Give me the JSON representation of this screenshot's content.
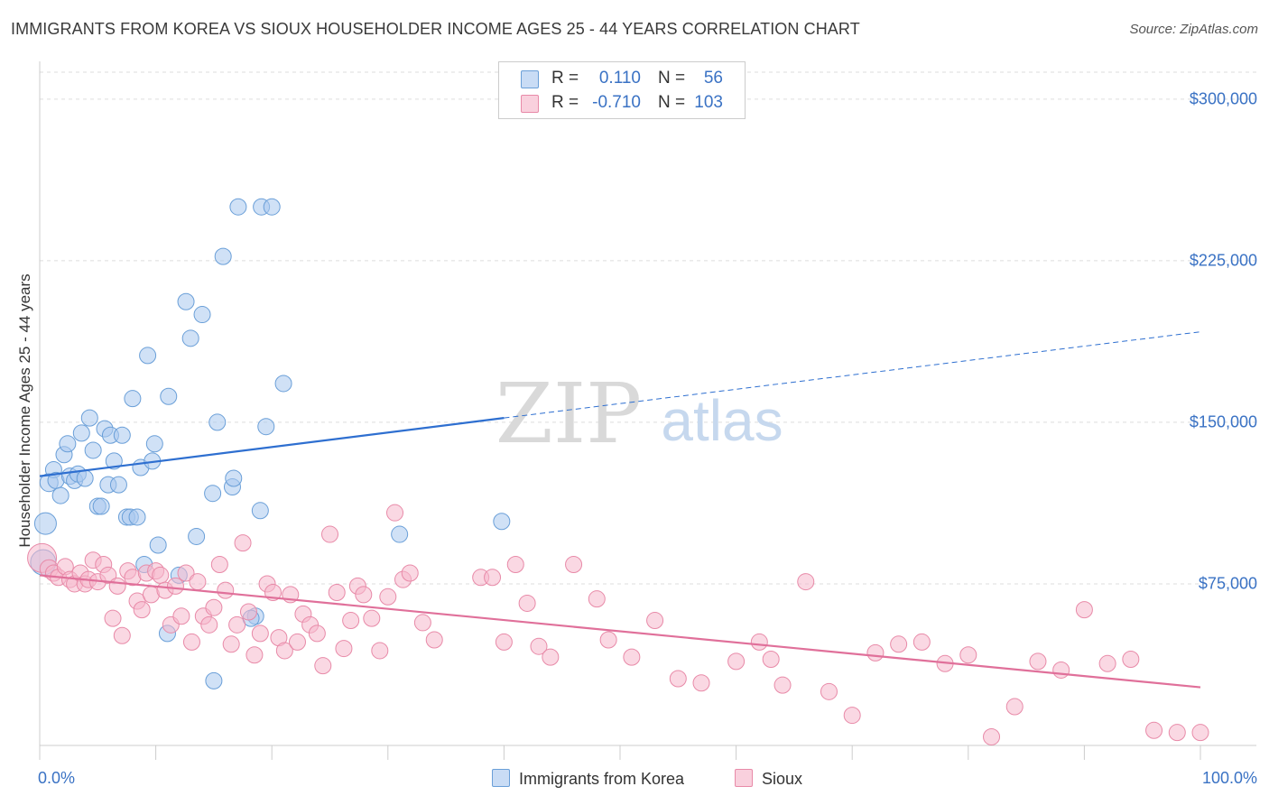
{
  "header": {
    "title": "IMMIGRANTS FROM KOREA VS SIOUX HOUSEHOLDER INCOME AGES 25 - 44 YEARS CORRELATION CHART",
    "source": "Source: ZipAtlas.com"
  },
  "watermark": {
    "zip": "ZIP",
    "atlas": "atlas"
  },
  "legend_top": {
    "rows": [
      {
        "r_label": "R =",
        "r_value": "0.110",
        "n_label": "N =",
        "n_value": "56",
        "color": "#a9c8ef"
      },
      {
        "r_label": "R =",
        "r_value": "-0.710",
        "n_label": "N =",
        "n_value": "103",
        "color": "#f5b8cc"
      }
    ]
  },
  "chart_data": {
    "type": "scatter",
    "title": "IMMIGRANTS FROM KOREA VS SIOUX HOUSEHOLDER INCOME AGES 25 - 44 YEARS CORRELATION CHART",
    "xlabel": "",
    "ylabel": "Householder Income Ages 25 - 44 years",
    "xlim": [
      0,
      100
    ],
    "ylim": [
      0,
      312500
    ],
    "x_tick_labels": [
      "0.0%",
      "100.0%"
    ],
    "y_ticks": [
      75000,
      150000,
      225000,
      300000
    ],
    "y_tick_labels": [
      "$75,000",
      "$150,000",
      "$225,000",
      "$300,000"
    ],
    "grid": true,
    "legend_position": "bottom",
    "series": [
      {
        "name": "Immigrants from Korea",
        "color": "#a9c8ef",
        "stroke": "#6a9fd8",
        "trend_color": "#2e6fd0",
        "trend": {
          "x0": 0,
          "y0": 125000,
          "x1": 40,
          "y1": 152000,
          "x_dash_end": 100,
          "y_dash_end": 192000
        },
        "points": [
          [
            0.3,
            85000,
            14
          ],
          [
            0.5,
            103000,
            12
          ],
          [
            0.8,
            122000,
            10
          ],
          [
            1.2,
            128000,
            9
          ],
          [
            1.4,
            123000,
            9
          ],
          [
            1.8,
            116000,
            9
          ],
          [
            2.1,
            135000,
            9
          ],
          [
            2.4,
            140000,
            9
          ],
          [
            2.6,
            125000,
            9
          ],
          [
            3.0,
            123000,
            9
          ],
          [
            3.3,
            126000,
            9
          ],
          [
            3.6,
            145000,
            9
          ],
          [
            3.9,
            124000,
            9
          ],
          [
            4.3,
            152000,
            9
          ],
          [
            4.6,
            137000,
            9
          ],
          [
            5.0,
            111000,
            9
          ],
          [
            5.3,
            111000,
            9
          ],
          [
            5.6,
            147000,
            9
          ],
          [
            5.9,
            121000,
            9
          ],
          [
            6.1,
            144000,
            9
          ],
          [
            6.4,
            132000,
            9
          ],
          [
            6.8,
            121000,
            9
          ],
          [
            7.1,
            144000,
            9
          ],
          [
            7.5,
            106000,
            9
          ],
          [
            7.8,
            106000,
            9
          ],
          [
            8.0,
            161000,
            9
          ],
          [
            8.4,
            106000,
            9
          ],
          [
            8.7,
            129000,
            9
          ],
          [
            9.0,
            84000,
            9
          ],
          [
            9.3,
            181000,
            9
          ],
          [
            9.7,
            132000,
            9
          ],
          [
            9.9,
            140000,
            9
          ],
          [
            10.2,
            93000,
            9
          ],
          [
            11.1,
            162000,
            9
          ],
          [
            12.0,
            79000,
            9
          ],
          [
            12.6,
            206000,
            9
          ],
          [
            13.0,
            189000,
            9
          ],
          [
            13.5,
            97000,
            9
          ],
          [
            14.0,
            200000,
            9
          ],
          [
            14.9,
            117000,
            9
          ],
          [
            15.3,
            150000,
            9
          ],
          [
            15.8,
            227000,
            9
          ],
          [
            16.6,
            120000,
            9
          ],
          [
            16.7,
            124000,
            9
          ],
          [
            17.1,
            250000,
            9
          ],
          [
            18.6,
            60000,
            9
          ],
          [
            19.0,
            109000,
            9
          ],
          [
            19.1,
            250000,
            9
          ],
          [
            19.5,
            148000,
            9
          ],
          [
            20.0,
            250000,
            9
          ],
          [
            21.0,
            168000,
            9
          ],
          [
            31.0,
            98000,
            9
          ],
          [
            39.8,
            104000,
            9
          ],
          [
            11.0,
            52000,
            9
          ],
          [
            15.0,
            30000,
            9
          ],
          [
            18.2,
            59000,
            9
          ]
        ]
      },
      {
        "name": "Sioux",
        "color": "#f5b8cc",
        "stroke": "#e88aa8",
        "trend_color": "#e0709a",
        "trend": {
          "x0": 0,
          "y0": 79000,
          "x1": 100,
          "y1": 27000
        },
        "points": [
          [
            0.2,
            87000,
            16
          ],
          [
            0.8,
            82000,
            10
          ],
          [
            1.2,
            80000,
            9
          ],
          [
            1.6,
            78000,
            9
          ],
          [
            2.2,
            83000,
            9
          ],
          [
            2.6,
            77000,
            9
          ],
          [
            3.0,
            75000,
            9
          ],
          [
            3.5,
            80000,
            9
          ],
          [
            3.9,
            75000,
            9
          ],
          [
            4.2,
            77000,
            9
          ],
          [
            4.6,
            86000,
            9
          ],
          [
            5.0,
            76000,
            9
          ],
          [
            5.5,
            84000,
            9
          ],
          [
            5.9,
            79000,
            9
          ],
          [
            6.3,
            59000,
            9
          ],
          [
            6.7,
            74000,
            9
          ],
          [
            7.1,
            51000,
            9
          ],
          [
            7.6,
            81000,
            9
          ],
          [
            8.0,
            78000,
            9
          ],
          [
            8.4,
            67000,
            9
          ],
          [
            8.8,
            63000,
            9
          ],
          [
            9.2,
            80000,
            9
          ],
          [
            9.6,
            70000,
            9
          ],
          [
            10.0,
            81000,
            9
          ],
          [
            10.4,
            79000,
            9
          ],
          [
            10.8,
            72000,
            9
          ],
          [
            11.3,
            56000,
            9
          ],
          [
            11.7,
            74000,
            9
          ],
          [
            12.2,
            60000,
            9
          ],
          [
            12.6,
            80000,
            9
          ],
          [
            13.1,
            48000,
            9
          ],
          [
            13.6,
            76000,
            9
          ],
          [
            14.1,
            60000,
            9
          ],
          [
            14.6,
            56000,
            9
          ],
          [
            15.0,
            64000,
            9
          ],
          [
            15.5,
            84000,
            9
          ],
          [
            16.0,
            72000,
            9
          ],
          [
            16.5,
            47000,
            9
          ],
          [
            17.0,
            56000,
            9
          ],
          [
            17.5,
            94000,
            9
          ],
          [
            18.0,
            62000,
            9
          ],
          [
            18.5,
            42000,
            9
          ],
          [
            19.0,
            52000,
            9
          ],
          [
            19.6,
            75000,
            9
          ],
          [
            20.1,
            71000,
            9
          ],
          [
            20.6,
            50000,
            9
          ],
          [
            21.1,
            44000,
            9
          ],
          [
            21.6,
            70000,
            9
          ],
          [
            22.2,
            48000,
            9
          ],
          [
            22.7,
            61000,
            9
          ],
          [
            23.3,
            56000,
            9
          ],
          [
            23.9,
            52000,
            9
          ],
          [
            24.4,
            37000,
            9
          ],
          [
            25.0,
            98000,
            9
          ],
          [
            25.6,
            71000,
            9
          ],
          [
            26.2,
            45000,
            9
          ],
          [
            26.8,
            58000,
            9
          ],
          [
            27.4,
            74000,
            9
          ],
          [
            27.9,
            70000,
            9
          ],
          [
            28.6,
            59000,
            9
          ],
          [
            29.3,
            44000,
            9
          ],
          [
            30.0,
            69000,
            9
          ],
          [
            30.6,
            108000,
            9
          ],
          [
            31.3,
            77000,
            9
          ],
          [
            31.9,
            80000,
            9
          ],
          [
            33.0,
            57000,
            9
          ],
          [
            34.0,
            49000,
            9
          ],
          [
            38.0,
            78000,
            9
          ],
          [
            39.0,
            78000,
            9
          ],
          [
            40.0,
            48000,
            9
          ],
          [
            41.0,
            84000,
            9
          ],
          [
            42.0,
            66000,
            9
          ],
          [
            43.0,
            46000,
            9
          ],
          [
            44.0,
            41000,
            9
          ],
          [
            46.0,
            84000,
            9
          ],
          [
            48.0,
            68000,
            9
          ],
          [
            49.0,
            49000,
            9
          ],
          [
            51.0,
            41000,
            9
          ],
          [
            53.0,
            58000,
            9
          ],
          [
            55.0,
            31000,
            9
          ],
          [
            57.0,
            29000,
            9
          ],
          [
            60.0,
            39000,
            9
          ],
          [
            62.0,
            48000,
            9
          ],
          [
            64.0,
            28000,
            9
          ],
          [
            66.0,
            76000,
            9
          ],
          [
            68.0,
            25000,
            9
          ],
          [
            70.0,
            14000,
            9
          ],
          [
            72.0,
            43000,
            9
          ],
          [
            74.0,
            47000,
            9
          ],
          [
            76.0,
            48000,
            9
          ],
          [
            78.0,
            38000,
            9
          ],
          [
            80.0,
            42000,
            9
          ],
          [
            82.0,
            4000,
            9
          ],
          [
            84.0,
            18000,
            9
          ],
          [
            86.0,
            39000,
            9
          ],
          [
            88.0,
            35000,
            9
          ],
          [
            90.0,
            63000,
            9
          ],
          [
            92.0,
            38000,
            9
          ],
          [
            94.0,
            40000,
            9
          ],
          [
            96.0,
            7000,
            9
          ],
          [
            98.0,
            6000,
            9
          ],
          [
            100.0,
            6000,
            9
          ],
          [
            63.0,
            40000,
            9
          ]
        ]
      }
    ]
  }
}
